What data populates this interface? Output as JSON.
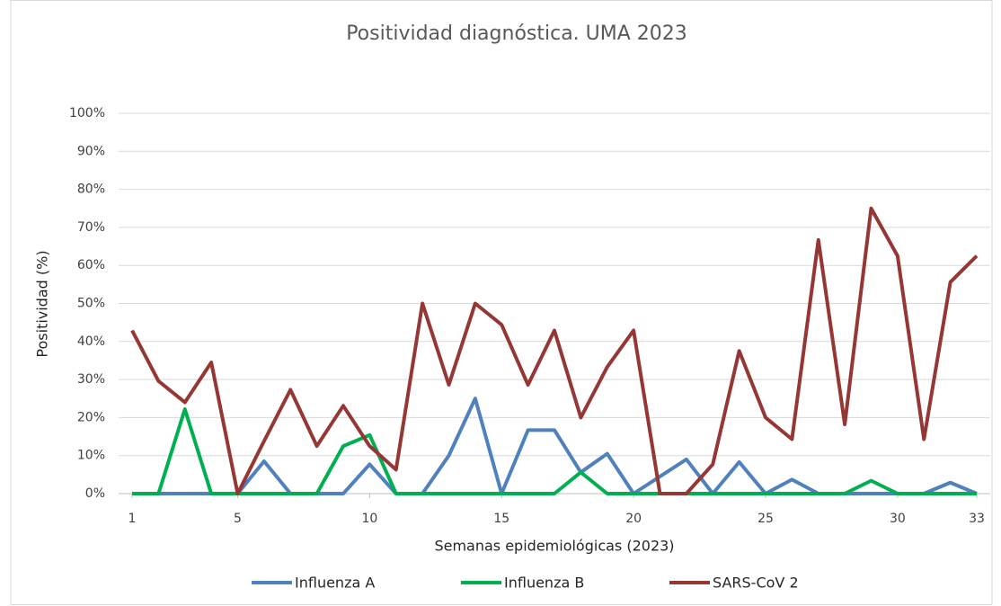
{
  "chart_data": {
    "type": "line",
    "title": "Positividad diagnóstica. UMA 2023",
    "x_label": "Semanas epidemiológicas (2023)",
    "y_label": "Positividad (%)",
    "x": [
      1,
      2,
      3,
      4,
      5,
      6,
      7,
      8,
      9,
      10,
      11,
      12,
      13,
      14,
      15,
      16,
      17,
      18,
      19,
      20,
      21,
      22,
      23,
      24,
      25,
      26,
      27,
      28,
      29,
      30,
      31,
      32,
      33
    ],
    "series": [
      {
        "name": "Influenza A",
        "color": "#4f81bd",
        "values": [
          0,
          0,
          0,
          0,
          0,
          8.5,
          0,
          0,
          0,
          7.7,
          0,
          0,
          10,
          25,
          0,
          16.7,
          16.7,
          5.6,
          10.5,
          0,
          4.5,
          9,
          0,
          8.3,
          0,
          3.7,
          0,
          0,
          0,
          0,
          0,
          2.9,
          0
        ]
      },
      {
        "name": "Influenza B",
        "color": "#00b050",
        "values": [
          0,
          0,
          22.2,
          0,
          0,
          0,
          0,
          0,
          12.5,
          15.4,
          0,
          0,
          0,
          0,
          0,
          0,
          0,
          5.6,
          0,
          0,
          0,
          0,
          0,
          0,
          0,
          0,
          0,
          0,
          3.4,
          0,
          0,
          0,
          0
        ]
      },
      {
        "name": "SARS-CoV 2",
        "color": "#953735",
        "values": [
          42.9,
          29.6,
          24,
          34.5,
          0,
          13.8,
          27.3,
          12.5,
          23.1,
          12.5,
          6.3,
          50,
          28.6,
          50,
          44.4,
          28.6,
          42.9,
          20,
          33.3,
          42.9,
          0,
          0,
          7.7,
          37.5,
          20,
          14.3,
          66.7,
          18.2,
          75,
          62.5,
          14.3,
          55.6,
          62.5
        ]
      }
    ],
    "xlim": [
      1,
      33
    ],
    "xticks": [
      1,
      5,
      10,
      15,
      20,
      25,
      30,
      33
    ],
    "ylim": [
      0,
      100
    ],
    "yticks": [
      {
        "value": 0,
        "label": "0%"
      },
      {
        "value": 10,
        "label": "10%"
      },
      {
        "value": 20,
        "label": "20%"
      },
      {
        "value": 30,
        "label": "30%"
      },
      {
        "value": 40,
        "label": "40%"
      },
      {
        "value": 50,
        "label": "50%"
      },
      {
        "value": 60,
        "label": "60%"
      },
      {
        "value": 70,
        "label": "70%"
      },
      {
        "value": 80,
        "label": "80%"
      },
      {
        "value": 90,
        "label": "90%"
      },
      {
        "value": 100,
        "label": "100%"
      }
    ],
    "grid": true,
    "legend": "bottom"
  }
}
